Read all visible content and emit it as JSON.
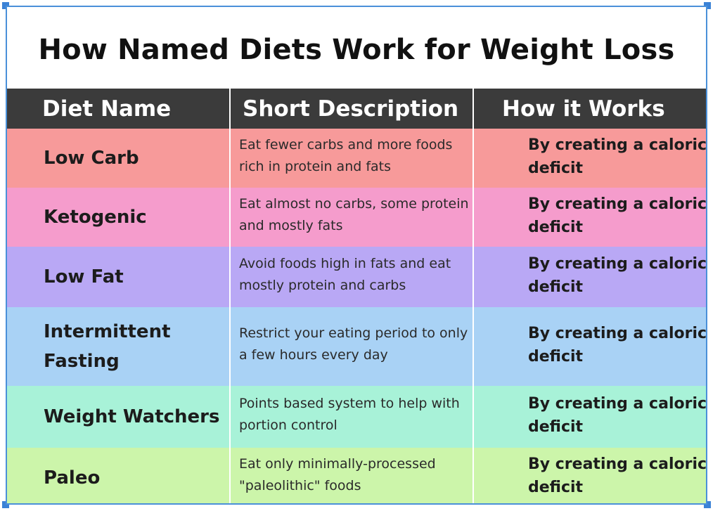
{
  "title": "How Named Diets Work for Weight Loss",
  "columns": [
    "Diet Name",
    "Short Description",
    "How it Works"
  ],
  "rows": [
    {
      "name": "Low Carb",
      "description": "Eat fewer carbs and more foods rich in protein and fats",
      "works": "By creating a caloric deficit",
      "color": "#f79a9a"
    },
    {
      "name": "Ketogenic",
      "description": "Eat almost no carbs, some protein and mostly fats",
      "works": "By creating a caloric deficit",
      "color": "#f59ccc"
    },
    {
      "name": "Low Fat",
      "description": "Avoid foods high in fats and eat mostly protein and carbs",
      "works": "By creating a caloric deficit",
      "color": "#b9a8f5"
    },
    {
      "name": "Intermittent Fasting",
      "description": "Restrict your eating period to only a few hours every day",
      "works": "By creating a caloric deficit",
      "color": "#a9d2f5"
    },
    {
      "name": "Weight Watchers",
      "description": "Points based system to help with portion control",
      "works": "By creating a caloric deficit",
      "color": "#a8f2d8"
    },
    {
      "name": "Paleo",
      "description": "Eat only minimally-processed \"paleolithic\" foods",
      "works": "By creating a caloric deficit",
      "color": "#ccf5aa"
    }
  ],
  "colors": {
    "header_bg": "#3b3b3b",
    "frame_border": "#4a90d9"
  }
}
